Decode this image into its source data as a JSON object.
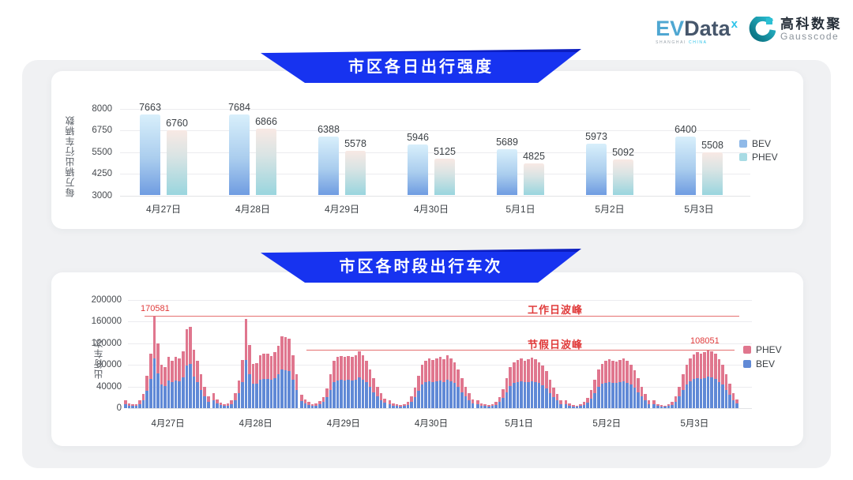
{
  "header": {
    "evdata": {
      "part1": "EV",
      "part2": "Data",
      "sup": "x",
      "sub_left": "SHANGHAI",
      "sub_right": "CHINA"
    },
    "gausscode": {
      "cn": "高科数聚",
      "en": "Gausscode"
    }
  },
  "sections": [
    {
      "title": "市区各日出行强度"
    },
    {
      "title": "市区各时段出行车次"
    }
  ],
  "colors": {
    "banner_blue": "#1733f0",
    "bev_stack": "#6089d6",
    "phev_stack": "#e0768e",
    "bev_legend": "#8fb9e8",
    "phev_legend": "#a8dbe4",
    "annotation_red": "#e03a3a",
    "ref_line_red": "#e57070"
  },
  "chart_data": [
    {
      "type": "bar",
      "title": "市区各日出行强度",
      "ylabel": "每万辆出行车辆数",
      "categories": [
        "4月27日",
        "4月28日",
        "4月29日",
        "4月30日",
        "5月1日",
        "5月2日",
        "5月3日"
      ],
      "series": [
        {
          "name": "BEV",
          "values": [
            7663,
            7684,
            6388,
            5946,
            5689,
            5973,
            6400
          ]
        },
        {
          "name": "PHEV",
          "values": [
            6760,
            6866,
            5578,
            5125,
            4825,
            5092,
            5508
          ]
        }
      ],
      "yticks": [
        3000,
        4250,
        5500,
        6750,
        8000
      ],
      "ylim": [
        3000,
        8250
      ],
      "grid": true,
      "legend_position": "right",
      "legend": [
        "BEV",
        "PHEV"
      ]
    },
    {
      "type": "bar",
      "stacked": true,
      "title": "市区各时段出行车次",
      "ylabel": "出行车次",
      "categories": [
        "4月27日",
        "4月28日",
        "4月29日",
        "4月30日",
        "5月1日",
        "5月2日",
        "5月3日"
      ],
      "hours_per_day": 24,
      "yticks": [
        0,
        40000,
        80000,
        120000,
        160000,
        200000
      ],
      "ylim": [
        0,
        220000
      ],
      "grid": true,
      "legend_position": "right",
      "legend": [
        "PHEV",
        "BEV"
      ],
      "annotations": {
        "workday_peak": {
          "label": "工作日波峰",
          "value": 170581,
          "value_label": "170581"
        },
        "holiday_peak": {
          "label": "节假日波峰",
          "value": 108051,
          "value_label": "108051"
        }
      },
      "totals_by_day": [
        [
          15000,
          9000,
          7000,
          8000,
          14000,
          26000,
          60000,
          101000,
          170581,
          119000,
          80000,
          76000,
          95000,
          88000,
          95000,
          92000,
          105000,
          145000,
          150000,
          108000,
          88000,
          62000,
          40000,
          22000
        ],
        [
          28000,
          16000,
          10000,
          8000,
          9000,
          15000,
          27000,
          51000,
          89000,
          164000,
          116000,
          82000,
          83000,
          97000,
          100000,
          101000,
          96000,
          103000,
          115000,
          133000,
          131000,
          128000,
          98000,
          62000
        ],
        [
          25000,
          16000,
          11000,
          8000,
          9000,
          13000,
          21000,
          37000,
          62000,
          88000,
          95000,
          96000,
          94000,
          96000,
          95000,
          98000,
          105000,
          97000,
          88000,
          72000,
          55000,
          40000,
          28000,
          18000
        ],
        [
          14000,
          9000,
          7000,
          6000,
          8000,
          12000,
          22000,
          38000,
          60000,
          80000,
          88000,
          92000,
          89000,
          92000,
          94000,
          90000,
          97000,
          92000,
          85000,
          72000,
          55000,
          40000,
          27000,
          16000
        ],
        [
          15000,
          9000,
          7000,
          6000,
          7000,
          11000,
          20000,
          35000,
          55000,
          75000,
          85000,
          89000,
          92000,
          88000,
          90000,
          93000,
          90000,
          85000,
          78000,
          68000,
          52000,
          38000,
          26000,
          15000
        ],
        [
          14000,
          9000,
          6000,
          5000,
          7000,
          11000,
          19000,
          33000,
          52000,
          72000,
          82000,
          87000,
          90000,
          87000,
          86000,
          89000,
          91000,
          87000,
          80000,
          70000,
          55000,
          40000,
          26000,
          15000
        ],
        [
          14000,
          8000,
          6000,
          5000,
          7000,
          12000,
          22000,
          40000,
          62000,
          80000,
          92000,
          99000,
          103000,
          101000,
          104000,
          108051,
          105000,
          100000,
          90000,
          80000,
          62000,
          45000,
          28000,
          16000
        ]
      ],
      "bev_by_day": [
        [
          8000,
          5000,
          4000,
          4500,
          7500,
          14000,
          32500,
          54500,
          91000,
          64000,
          43000,
          41000,
          51500,
          47500,
          51500,
          49500,
          56500,
          78500,
          81000,
          58500,
          47500,
          33500,
          21500,
          12000
        ],
        [
          15000,
          8500,
          5500,
          4500,
          5000,
          8000,
          14500,
          27500,
          48000,
          88500,
          62500,
          44500,
          45000,
          52500,
          54000,
          54500,
          52000,
          55500,
          62000,
          72000,
          70500,
          69000,
          53000,
          33500
        ],
        [
          13500,
          8500,
          6000,
          4500,
          5000,
          7000,
          11500,
          20000,
          33500,
          47500,
          51500,
          52000,
          51000,
          52000,
          51500,
          53000,
          56500,
          52500,
          47500,
          39000,
          29500,
          21500,
          15000,
          9500
        ],
        [
          7500,
          5000,
          4000,
          3000,
          4500,
          6500,
          12000,
          20500,
          32500,
          43000,
          47500,
          49500,
          48000,
          49500,
          50500,
          48500,
          52500,
          49500,
          46000,
          39000,
          29500,
          21500,
          14500,
          8500
        ],
        [
          8000,
          5000,
          4000,
          3000,
          4000,
          6000,
          11000,
          19000,
          29500,
          40500,
          46000,
          48000,
          49500,
          47500,
          48500,
          50000,
          48500,
          46000,
          42000,
          36500,
          28000,
          20500,
          14000,
          8000
        ],
        [
          7500,
          5000,
          3000,
          2500,
          4000,
          6000,
          10500,
          18000,
          28000,
          39000,
          44500,
          47000,
          48500,
          47000,
          46500,
          48000,
          49000,
          47000,
          43000,
          38000,
          29500,
          21500,
          14000,
          8000
        ],
        [
          7500,
          4500,
          3000,
          2500,
          4000,
          6500,
          12000,
          21500,
          33500,
          43000,
          49500,
          53500,
          55500,
          54500,
          56000,
          58500,
          56500,
          54000,
          48500,
          43000,
          33500,
          24500,
          15000,
          8500
        ]
      ]
    }
  ]
}
